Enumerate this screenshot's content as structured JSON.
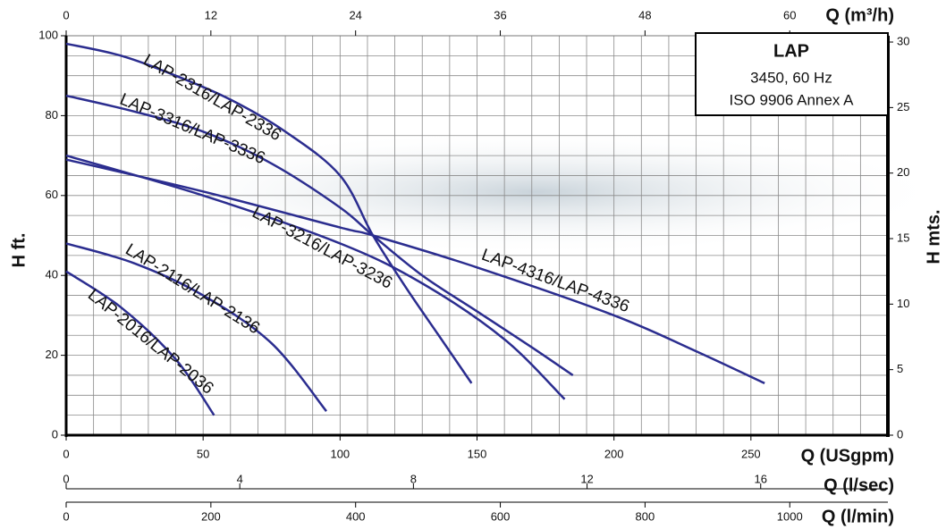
{
  "chart_data": {
    "type": "line",
    "legend_box": {
      "title": "LAP",
      "lines": [
        "3450, 60 Hz",
        "ISO 9906 Annex A"
      ]
    },
    "xlabel": "Q (USgpm)",
    "xlim": [
      0,
      300
    ],
    "xticks": [
      0,
      50,
      100,
      150,
      200,
      250
    ],
    "ylabel": "H ft.",
    "ylim": [
      0,
      100
    ],
    "yticks": [
      0,
      20,
      40,
      60,
      80,
      100
    ],
    "y2label": "H mts.",
    "y2lim": [
      0,
      30.48
    ],
    "y2ticks": [
      0,
      5,
      10,
      15,
      20,
      25,
      30
    ],
    "extra_x_axes": [
      {
        "label": "Q (m³/h)",
        "position": "top",
        "lim": [
          0,
          68.14
        ],
        "ticks": [
          0,
          12,
          24,
          36,
          48,
          60
        ]
      },
      {
        "label": "Q (l/sec)",
        "position": "bottom",
        "lim": [
          0,
          18.93
        ],
        "ticks": [
          0,
          4,
          8,
          12,
          16
        ]
      },
      {
        "label": "Q (l/min)",
        "position": "bottom",
        "lim": [
          0,
          1135.6
        ],
        "ticks": [
          0,
          200,
          400,
          600,
          800,
          1000
        ]
      }
    ],
    "grid": true,
    "minor_xticks": [
      0,
      10,
      20,
      30,
      40,
      50,
      60,
      70,
      80,
      90,
      100,
      110,
      120,
      130,
      140,
      150,
      160,
      170,
      180,
      190,
      200,
      210,
      220,
      230,
      240,
      250,
      260,
      270,
      280,
      290,
      300
    ],
    "minor_yticks": [
      0,
      5,
      10,
      15,
      20,
      25,
      30,
      35,
      40,
      45,
      50,
      55,
      60,
      65,
      70,
      75,
      80,
      85,
      90,
      95,
      100
    ],
    "series": [
      {
        "name": "LAP-2316/LAP-2336",
        "color": "#2b2d8f",
        "x": [
          0,
          20,
          40,
          60,
          80,
          100,
          112,
          124,
          136,
          148
        ],
        "values": [
          98,
          95,
          90,
          84,
          76,
          65,
          50,
          37,
          25,
          13
        ]
      },
      {
        "name": "LAP-3316/LAP-3336",
        "color": "#2b2d8f",
        "x": [
          0,
          25,
          50,
          75,
          100,
          112,
          130,
          150,
          170,
          185
        ],
        "values": [
          85,
          81,
          76,
          68,
          57,
          50,
          40,
          31,
          22,
          15
        ]
      },
      {
        "name": "LAP-4316/LAP-4336",
        "color": "#2b2d8f",
        "x": [
          0,
          50,
          100,
          112,
          150,
          200,
          230,
          255
        ],
        "values": [
          69,
          61,
          52,
          50,
          42,
          30,
          21,
          13
        ]
      },
      {
        "name": "LAP-3216/LAP-3236",
        "color": "#2b2d8f",
        "x": [
          0,
          50,
          100,
          130,
          160,
          182
        ],
        "values": [
          70,
          60,
          48,
          38,
          24,
          9
        ]
      },
      {
        "name": "LAP-2116/LAP-2136",
        "color": "#2b2d8f",
        "x": [
          0,
          25,
          50,
          75,
          95
        ],
        "values": [
          48,
          43,
          35,
          23,
          6
        ]
      },
      {
        "name": "LAP-2016/LAP-2036",
        "color": "#2b2d8f",
        "x": [
          0,
          20,
          40,
          54
        ],
        "values": [
          41,
          32,
          19,
          5
        ]
      }
    ]
  }
}
